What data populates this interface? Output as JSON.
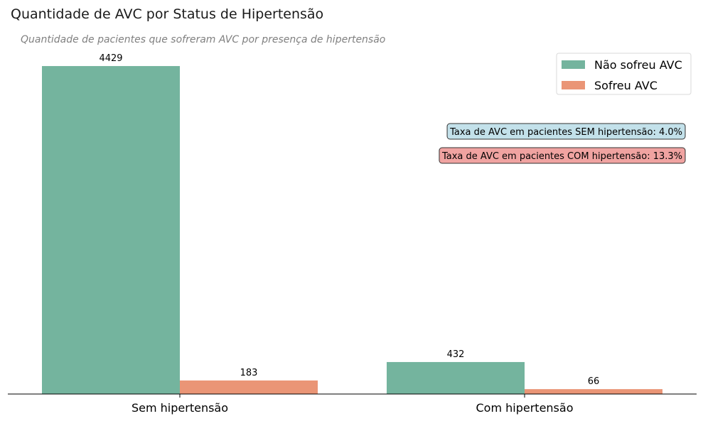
{
  "chart_data": {
    "type": "bar",
    "title": "Quantidade de AVC por Status de Hipertensão",
    "subtitle": "Quantidade de pacientes que sofreram AVC por presença de hipertensão",
    "xlabel": "",
    "ylabel": "",
    "categories": [
      "Sem hipertensão",
      "Com hipertensão"
    ],
    "series": [
      {
        "name": "Não sofreu AVC",
        "values": [
          4429,
          432
        ],
        "color": "#74b49e"
      },
      {
        "name": "Sofreu AVC",
        "values": [
          183,
          66
        ],
        "color": "#ea9576"
      }
    ],
    "ylim": [
      0,
      4650
    ],
    "grid": false,
    "legend_position": "top-right",
    "annotations": [
      {
        "text": "Taxa de AVC em pacientes SEM hipertensão: 4.0%",
        "color": "#c3e1ea"
      },
      {
        "text": "Taxa de AVC em pacientes COM hipertensão: 13.3%",
        "color": "#f0a3a1"
      }
    ]
  }
}
